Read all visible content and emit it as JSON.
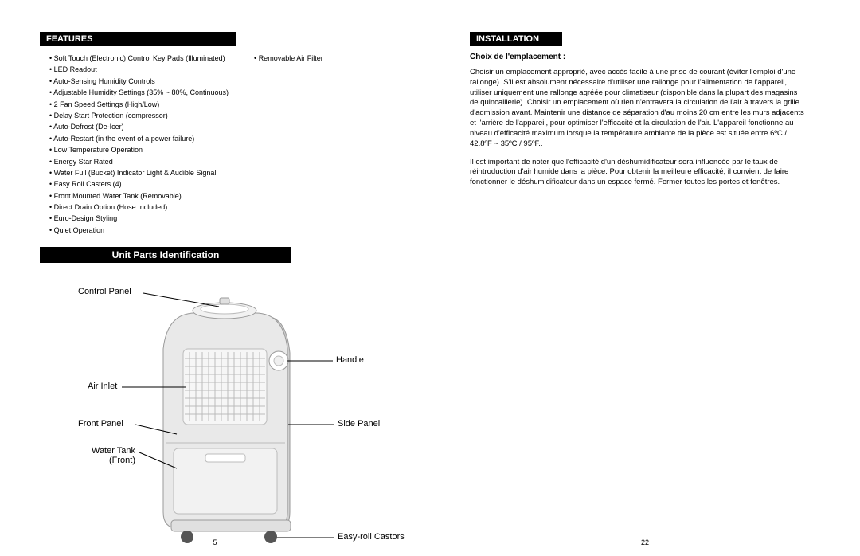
{
  "left": {
    "features_header": "FEATURES",
    "features_col1": [
      "Soft Touch (Electronic) Control Key Pads (Illuminated)",
      "LED Readout",
      "Auto‑Sensing Humidity Controls",
      "Adjustable Humidity Settings (35% ~ 80%, Continuous)",
      "2 Fan Speed Settings (High/Low)",
      "Delay Start Protection (compressor)",
      "Auto‑Defrost (De‑Icer)",
      "Auto‑Restart (in the event of a power failure)",
      "Low Temperature Operation",
      "Energy Star Rated",
      "Water Full (Bucket) Indicator Light & Audible Signal",
      "Easy Roll Casters (4)",
      "Front Mounted Water Tank (Removable)",
      "Direct Drain Option (Hose Included)",
      "Euro‑Design Styling",
      "Quiet Operation"
    ],
    "features_col2": [
      "Removable Air Filter"
    ],
    "parts_header": "Unit Parts Identification",
    "labels": {
      "control_panel": "Control Panel",
      "air_inlet": "Air Inlet",
      "front_panel": "Front Panel",
      "water_tank": "Water Tank (Front)",
      "handle": "Handle",
      "side_panel": "Side Panel",
      "castors": "Easy-roll Castors"
    },
    "page_num": "5",
    "diagram_style": {
      "body_fill": "#e9e9e9",
      "body_stroke": "#9a9a9a",
      "grille_stroke": "#bcbcbc",
      "shadow_fill": "#cfcfcf",
      "line_stroke": "#000000",
      "button_fill": "#ffffff",
      "caster_fill": "#555555"
    }
  },
  "right": {
    "installation_header": "INSTALLATION",
    "subheading": "Choix de l'emplacement :",
    "para1": "Choisir un emplacement approprié, avec accès facile à une prise de courant (éviter l'emploi d'une rallonge). S'il est absolument nécessaire d'utiliser une rallonge pour l'alimentation de l'appareil, utiliser uniquement une rallonge agréée pour climatiseur (disponible dans la plupart des magasins de quincaillerie). Choisir un emplacement où rien n'entravera la circulation de l'air à travers la grille d'admission avant. Maintenir une distance de séparation d'au moins 20 cm entre les murs adjacents et l'arrière de l'appareil, pour optimiser l'efficacité et la circulation de l'air. L'appareil fonctionne au niveau d'efficacité maximum lorsque la température ambiante de la pièce est située entre 6ºC / 42.8ºF ~ 35ºC / 95ºF..",
    "para2": "Il est important de noter que l'efficacité d'un déshumidificateur sera influencée par le taux de réintroduction d'air humide dans la pièce. Pour obtenir la meilleure efficacité, il convient de faire fonctionner le déshumidificateur dans un espace fermé. Fermer toutes les portes et fenêtres.",
    "page_num": "22"
  }
}
